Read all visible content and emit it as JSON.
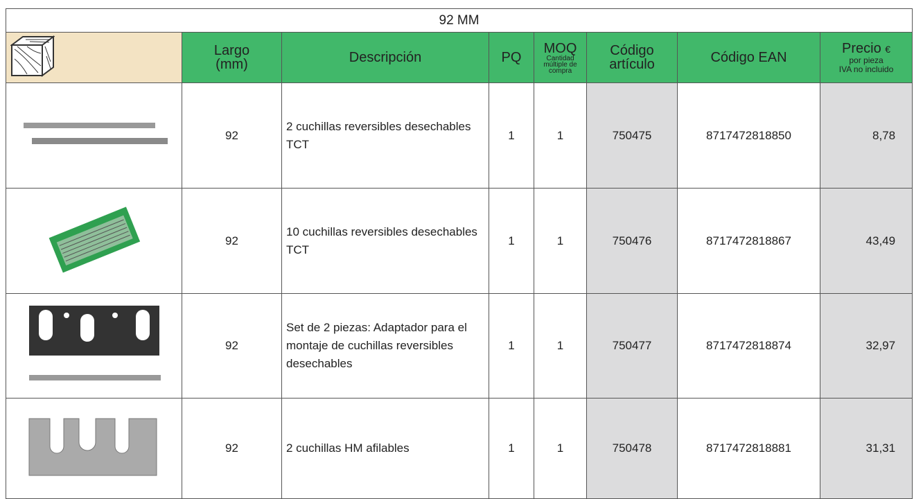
{
  "table": {
    "title": "92 MM",
    "headers": {
      "largo": "Largo (mm)",
      "descripcion": "Descripción",
      "pq": "PQ",
      "moq": "MOQ",
      "moq_sub": "Cantidad múltiple de compra",
      "codigo": "Código artículo",
      "ean": "Código EAN",
      "precio": "Precio",
      "precio_unit": "€",
      "precio_sub1": "por pieza",
      "precio_sub2": "IVA no incluido"
    },
    "rows": [
      [
        "92",
        "2 cuchillas reversibles desechables TCT",
        "1",
        "1",
        "750475",
        "8717472818850",
        "8,78"
      ],
      [
        "92",
        "10 cuchillas reversibles desechables TCT",
        "1",
        "1",
        "750476",
        "8717472818867",
        "43,49"
      ],
      [
        "92",
        "Set de 2 piezas: Adaptador para el montaje de cuchillas reversibles desechables",
        "1",
        "1",
        "750477",
        "8717472818874",
        "32,97"
      ],
      [
        "92",
        "2 cuchillas HM afilables",
        "1",
        "1",
        "750478",
        "8717472818881",
        "31,31"
      ]
    ]
  }
}
